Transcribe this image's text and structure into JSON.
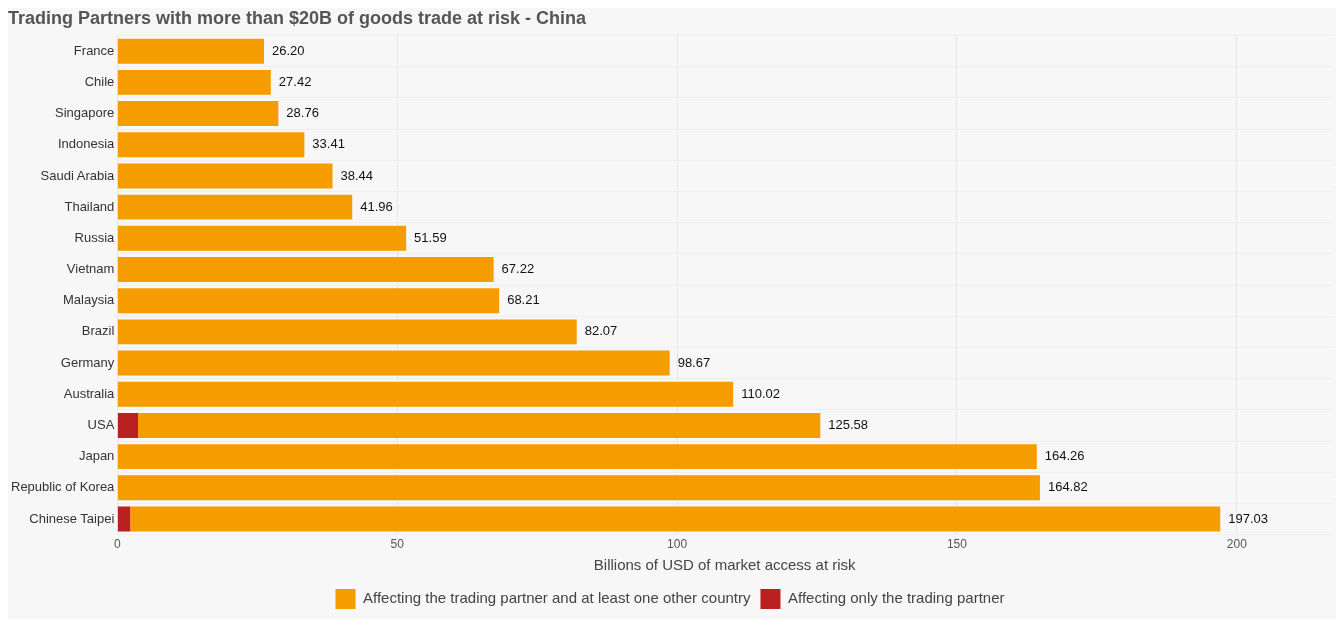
{
  "chart_data": {
    "type": "bar",
    "orientation": "horizontal",
    "stacked": true,
    "title": "Trading Partners with more than $20B of goods trade at risk - China",
    "xlabel": "Billions of USD of market access at risk",
    "categories": [
      "France",
      "Chile",
      "Singapore",
      "Indonesia",
      "Saudi Arabia",
      "Thailand",
      "Russia",
      "Vietnam",
      "Malaysia",
      "Brazil",
      "Germany",
      "Australia",
      "USA",
      "Japan",
      "Republic of Korea",
      "Chinese Taipei"
    ],
    "series": [
      {
        "name": "Affecting only the trading partner",
        "color": "#b92022",
        "values": [
          null,
          null,
          null,
          null,
          null,
          null,
          null,
          null,
          null,
          null,
          null,
          null,
          3.7,
          null,
          null,
          2.3
        ]
      },
      {
        "name": "Affecting the trading partner and at least one other country",
        "color": "#f59d00",
        "values": [
          26.2,
          27.42,
          28.76,
          33.41,
          38.44,
          41.96,
          51.59,
          67.22,
          68.21,
          82.07,
          98.67,
          110.02,
          121.88,
          164.26,
          164.82,
          194.73
        ]
      }
    ],
    "totals": [
      "26.20",
      "27.42",
      "28.76",
      "33.41",
      "38.44",
      "41.96",
      "51.59",
      "67.22",
      "68.21",
      "82.07",
      "98.67",
      "110.02",
      "125.58",
      "164.26",
      "164.82",
      "197.03"
    ],
    "xlim": [
      0,
      217
    ],
    "xticks": [
      0,
      50,
      100,
      150,
      200
    ],
    "grid": true,
    "legend": "bottom"
  }
}
